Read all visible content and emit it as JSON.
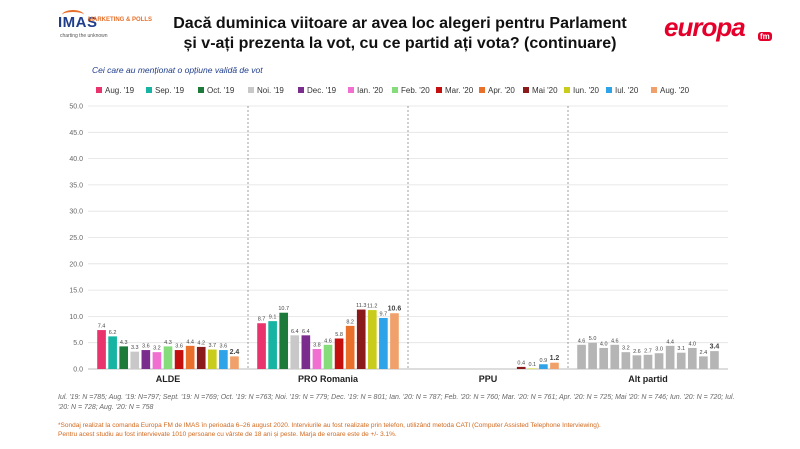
{
  "header": {
    "title_line1": "Dacă duminica viitoare ar avea loc alegeri pentru Parlament",
    "title_line2": "și v-ați prezenta la vot, cu ce partid ați vota? (continuare)",
    "imas_logo": "IMAS",
    "imas_logo_sub": "MARKETING & POLLS",
    "imas_tagline": "charting the unknown",
    "europa_logo": "europa",
    "europa_logo_fm": "fm"
  },
  "subtitle": "Cei care au menționat o opțiune validă de vot",
  "colors": {
    "Aug. '19": "#e8336d",
    "Sep. '19": "#17b3a3",
    "Oct. '19": "#1e7a3a",
    "Noi. '19": "#c8c8c8",
    "Dec. '19": "#7b2d8e",
    "Ian. '20": "#f06fd0",
    "Feb. '20": "#86dc7a",
    "Mar. '20": "#c40f0f",
    "Apr. '20": "#e8702a",
    "Mai '20": "#8b1a1a",
    "Iun. '20": "#c9cc1a",
    "Iul. '20": "#2ea3e8",
    "Aug. '20": "#f0a06a",
    "alt_partid": "#b5b5b5"
  },
  "chart_data": {
    "type": "bar",
    "categories": [
      "ALDE",
      "PRO Romania",
      "PPU",
      "Alt partid"
    ],
    "ylim": [
      0,
      50
    ],
    "yticks": [
      "0.0",
      "5.0",
      "10.0",
      "15.0",
      "20.0",
      "25.0",
      "30.0",
      "35.0",
      "40.0",
      "45.0",
      "50.0"
    ],
    "grid": true,
    "legend_position": "top",
    "series": [
      {
        "name": "Aug. '19",
        "values": [
          7.4,
          8.7,
          null,
          4.6
        ]
      },
      {
        "name": "Sep. '19",
        "values": [
          6.2,
          9.1,
          null,
          5.0
        ]
      },
      {
        "name": "Oct. '19",
        "values": [
          4.3,
          10.7,
          null,
          4.0
        ]
      },
      {
        "name": "Noi. '19",
        "values": [
          3.3,
          6.4,
          null,
          4.6
        ]
      },
      {
        "name": "Dec. '19",
        "values": [
          3.6,
          6.4,
          null,
          3.2
        ]
      },
      {
        "name": "Ian. '20",
        "values": [
          3.2,
          3.8,
          null,
          2.6
        ]
      },
      {
        "name": "Feb. '20",
        "values": [
          4.3,
          4.6,
          null,
          2.7
        ]
      },
      {
        "name": "Mar. '20",
        "values": [
          3.6,
          5.8,
          null,
          3.0
        ]
      },
      {
        "name": "Apr. '20",
        "values": [
          4.4,
          8.2,
          null,
          4.4
        ]
      },
      {
        "name": "Mai '20",
        "values": [
          4.2,
          11.3,
          0.4,
          3.1
        ]
      },
      {
        "name": "Iun. '20",
        "values": [
          3.7,
          11.2,
          0.1,
          4.0
        ]
      },
      {
        "name": "Iul. '20",
        "values": [
          3.6,
          9.7,
          0.9,
          2.4
        ]
      },
      {
        "name": "Aug. '20",
        "values": [
          2.4,
          10.6,
          1.2,
          3.4
        ]
      }
    ],
    "bold_last_label": true
  },
  "footnote": "Iul. '19: N =785; Aug. '19: N=797; Sept. '19: N =769; Oct. '19: N =763; Noi. '19: N = 779; Dec. '19: N = 801; Ian. '20: N = 787; Feb. '20: N = 760; Mar. '20: N = 761; Apr. '20: N = 725; Mai '20: N = 746; Iun. '20: N = 720; Iul. '20: N = 728; Aug. '20: N = 758",
  "method_line1": "*Sondaj realizat la comanda Europa FM de IMAS în perioada 6–26 august 2020. Interviurile au fost realizate prin telefon, utilizând metoda CATI (Computer Assisted Telephone Interviewing).",
  "method_line2": "Pentru acest studiu au fost intervievate 1010 persoane cu vârste de 18 ani și peste. Marja de eroare este de +/- 3.1%."
}
